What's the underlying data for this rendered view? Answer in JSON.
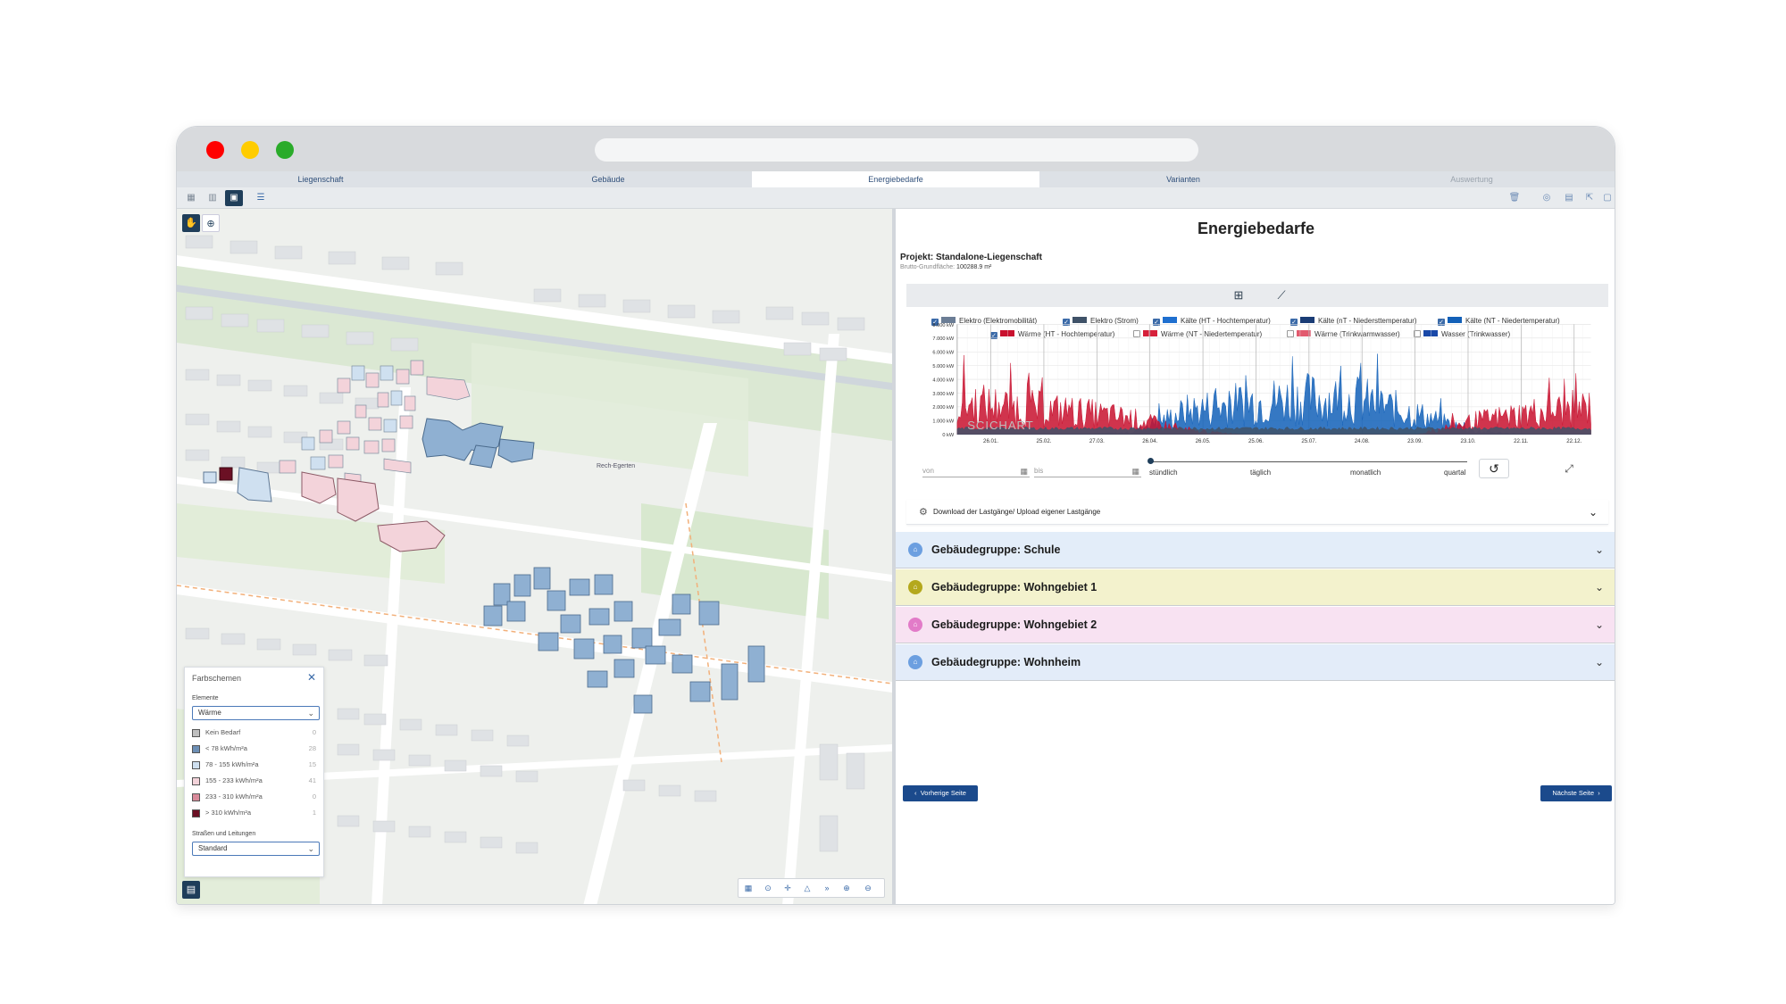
{
  "colors": {
    "red": "#ff0000",
    "yellow": "#ffcc00",
    "green": "#2aab2a",
    "nav": "#1f3e5a",
    "accent": "#1b4a8c"
  },
  "tabs": [
    {
      "label": "Liegenschaft",
      "state": "normal"
    },
    {
      "label": "Gebäude",
      "state": "normal"
    },
    {
      "label": "Energiebedarfe",
      "state": "active"
    },
    {
      "label": "Varianten",
      "state": "normal"
    },
    {
      "label": "Auswertung",
      "state": "disabled"
    }
  ],
  "map": {
    "labels": {
      "area": "Rech-Egerten"
    },
    "farbschemen": {
      "title": "Farbschemen",
      "elements_label": "Elemente",
      "elements_value": "Wärme",
      "legend": [
        {
          "label": "Kein Bedarf",
          "count": "0",
          "color": "#bfbfbf"
        },
        {
          "label": "< 78 kWh/m²a",
          "count": "28",
          "color": "#6d8fb5"
        },
        {
          "label": "78 - 155 kWh/m²a",
          "count": "15",
          "color": "#cfe0f0"
        },
        {
          "label": "155 - 233 kWh/m²a",
          "count": "41",
          "color": "#f3d3da"
        },
        {
          "label": "233 - 310 kWh/m²a",
          "count": "0",
          "color": "#d98a9a"
        },
        {
          "label": "> 310 kWh/m²a",
          "count": "1",
          "color": "#6b1024"
        }
      ],
      "roads_label": "Straßen und Leitungen",
      "roads_value": "Standard"
    }
  },
  "energy": {
    "title": "Energiebedarfe",
    "project": "Projekt: Standalone-Liegenschaft",
    "bgf_label": "Brutto-Grundfläche:",
    "bgf_value": "100288.9 m²",
    "legend": [
      {
        "label": "Elektro (Elektromobilität)",
        "checked": true,
        "color": "#6b7d95"
      },
      {
        "label": "Elektro (Strom)",
        "checked": true,
        "color": "#3f5268"
      },
      {
        "label": "Kälte (HT - Hochtemperatur)",
        "checked": true,
        "color": "#1f6fcf"
      },
      {
        "label": "Kälte (nT - Niedersttemperatur)",
        "checked": true,
        "color": "#1a3c75"
      },
      {
        "label": "Kälte (NT - Niedertemperatur)",
        "checked": true,
        "color": "#1260b8"
      },
      {
        "label": "Wärme (HT - Hochtemperatur)",
        "checked": true,
        "color": "#c8102e"
      },
      {
        "label": "Wärme (NT - Niedertemperatur)",
        "checked": false,
        "color": "#d6203a"
      },
      {
        "label": "Wärme (Trinkwarmwasser)",
        "checked": false,
        "color": "#e25a6e"
      },
      {
        "label": "Wasser (Trinkwasser)",
        "checked": false,
        "color": "#1948a8"
      }
    ],
    "watermark": "SCICHART",
    "from_placeholder": "von",
    "to_placeholder": "bis",
    "resolutions": [
      "stündlich",
      "täglich",
      "monatlich",
      "quartal"
    ],
    "download_label": "Download der Lastgänge/ Upload eigener Lastgänge",
    "groups": [
      {
        "label": "Gebäudegruppe: Schule",
        "bg": "#e3edf9",
        "icon": "#6c9fe0"
      },
      {
        "label": "Gebäudegruppe: Wohngebiet 1",
        "bg": "#f3f2cd",
        "icon": "#b4a81c"
      },
      {
        "label": "Gebäudegruppe: Wohngebiet 2",
        "bg": "#f8e2f2",
        "icon": "#e27bc8"
      },
      {
        "label": "Gebäudegruppe: Wohnheim",
        "bg": "#e3ecf9",
        "icon": "#6c9fe0"
      }
    ],
    "prev_label": "Vorherige Seite",
    "next_label": "Nächste Seite"
  },
  "chart_data": {
    "type": "area",
    "title": "",
    "xlabel": "",
    "ylabel": "",
    "y_ticks": [
      "0 kW",
      "1.000 kW",
      "2.000 kW",
      "3.000 kW",
      "4.000 kW",
      "5.000 kW",
      "6.000 kW",
      "7.000 kW",
      "8.000 kW"
    ],
    "ylim": [
      0,
      8000
    ],
    "x_ticks": [
      "26.01.",
      "25.02.",
      "27.03.",
      "26.04.",
      "26.05.",
      "25.06.",
      "25.07.",
      "24.08.",
      "23.09.",
      "23.10.",
      "22.11.",
      "22.12."
    ],
    "x": [
      "Jan",
      "Feb",
      "Mar",
      "Apr",
      "May",
      "Jun",
      "Jul",
      "Aug",
      "Sep",
      "Oct",
      "Nov",
      "Dec"
    ],
    "series": [
      {
        "name": "Wärme (HT - Hochtemperatur)",
        "values": [
          3500,
          3000,
          2500,
          1800,
          400,
          0,
          0,
          0,
          0,
          1500,
          2400,
          3000
        ]
      },
      {
        "name": "Kälte (NT - Niedertemperatur)",
        "values": [
          0,
          0,
          0,
          200,
          2600,
          3500,
          4000,
          3800,
          2200,
          300,
          0,
          0
        ]
      },
      {
        "name": "Elektro (Strom)",
        "values": [
          500,
          500,
          500,
          500,
          500,
          500,
          500,
          500,
          500,
          500,
          500,
          500
        ]
      }
    ],
    "grid": true,
    "legend": "top"
  }
}
